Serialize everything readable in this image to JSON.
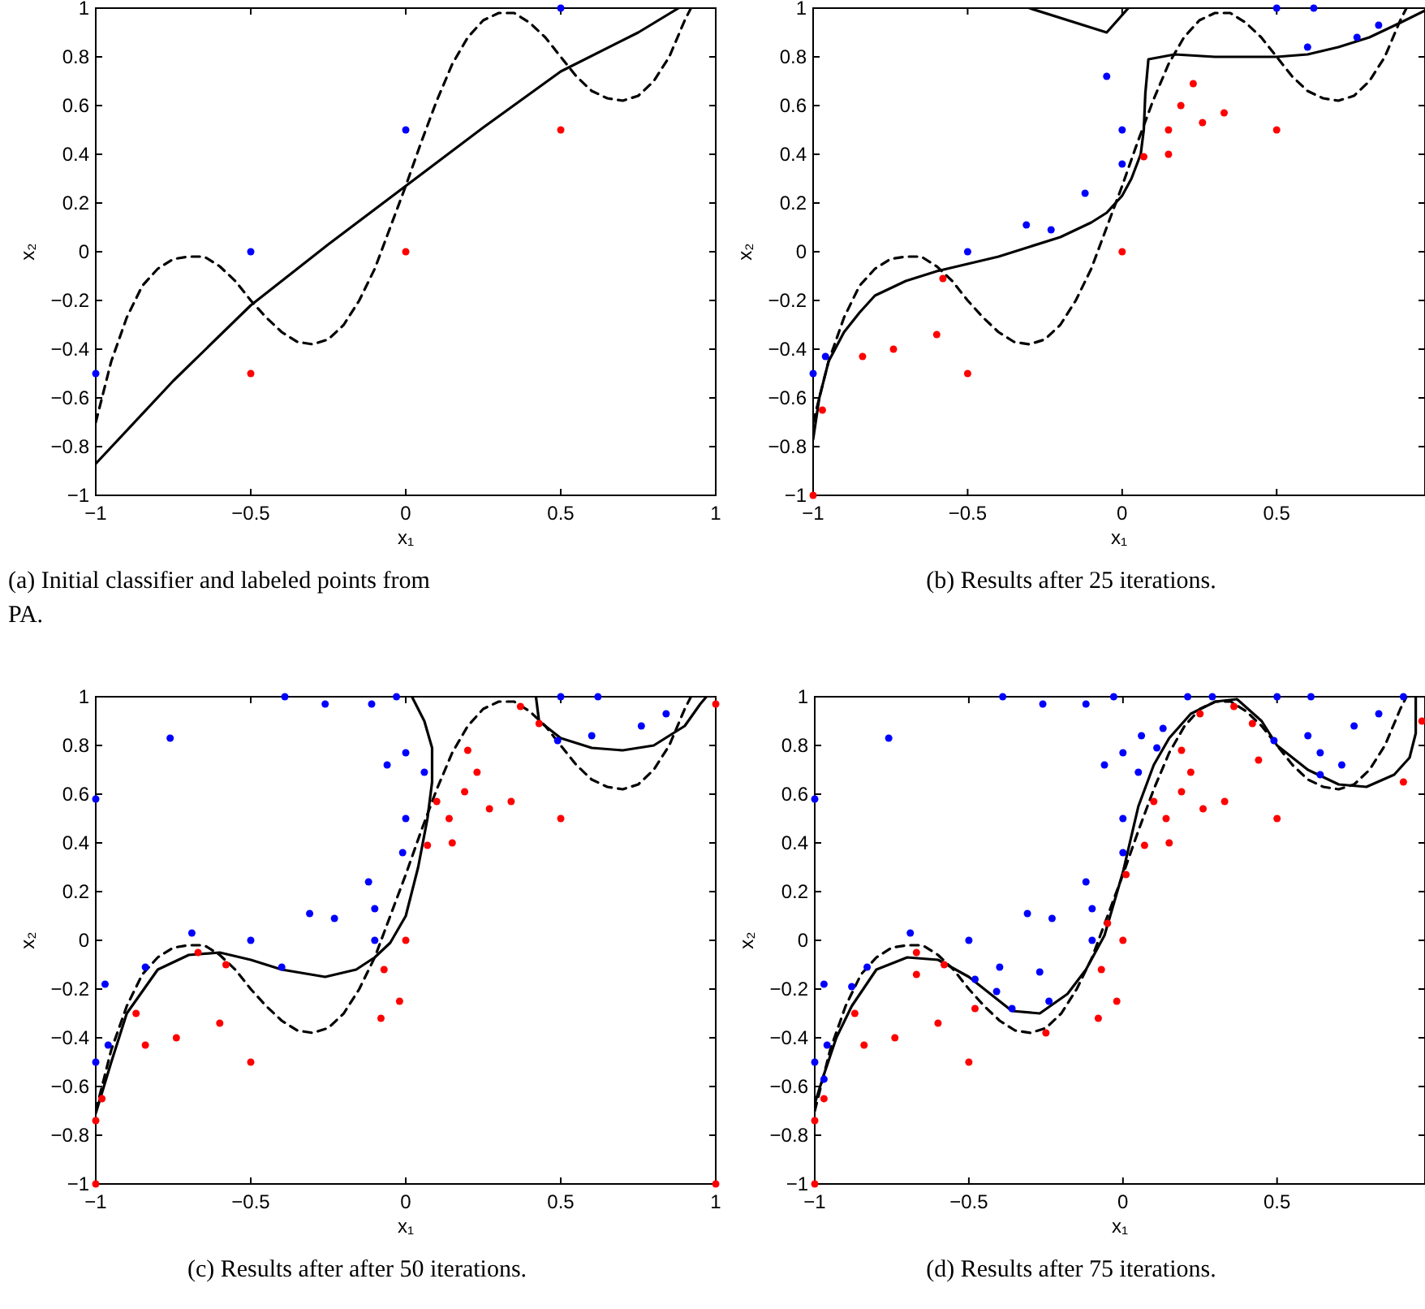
{
  "chart_data": [
    {
      "type": "scatter",
      "title": "(a) Initial classifier and labeled points from PA.",
      "xlabel": "x₁",
      "ylabel": "x₂",
      "xlim": [
        -1,
        1
      ],
      "ylim": [
        -1,
        1
      ],
      "xticks": [
        -1,
        -0.5,
        0,
        0.5,
        1
      ],
      "yticks": [
        -1,
        -0.8,
        -0.6,
        -0.4,
        -0.2,
        0,
        0.2,
        0.4,
        0.6,
        0.8,
        1
      ],
      "series": [
        {
          "type": "line",
          "line_style": "dashed",
          "color": "#000000",
          "x": [
            -1,
            -0.95,
            -0.9,
            -0.85,
            -0.8,
            -0.75,
            -0.7,
            -0.65,
            -0.6,
            -0.55,
            -0.5,
            -0.45,
            -0.4,
            -0.35,
            -0.3,
            -0.25,
            -0.2,
            -0.15,
            -0.1,
            -0.05,
            0,
            0.05,
            0.1,
            0.15,
            0.2,
            0.25,
            0.3,
            0.35,
            0.4,
            0.45,
            0.5,
            0.55,
            0.6,
            0.65,
            0.7,
            0.75,
            0.8,
            0.85,
            0.9,
            0.92
          ],
          "values": [
            -0.7,
            -0.45,
            -0.27,
            -0.14,
            -0.07,
            -0.03,
            -0.02,
            -0.02,
            -0.06,
            -0.12,
            -0.2,
            -0.27,
            -0.33,
            -0.37,
            -0.38,
            -0.36,
            -0.3,
            -0.2,
            -0.07,
            0.1,
            0.27,
            0.45,
            0.62,
            0.77,
            0.88,
            0.95,
            0.98,
            0.98,
            0.94,
            0.88,
            0.8,
            0.72,
            0.66,
            0.63,
            0.62,
            0.64,
            0.7,
            0.8,
            0.95,
            1
          ]
        },
        {
          "type": "line",
          "line_style": "solid",
          "color": "#000000",
          "x": [
            -1,
            -0.75,
            -0.5,
            -0.25,
            0,
            0.25,
            0.5,
            0.75,
            0.88
          ],
          "values": [
            -0.87,
            -0.53,
            -0.22,
            0.03,
            0.27,
            0.51,
            0.74,
            0.9,
            1
          ]
        },
        {
          "type": "scatter",
          "marker": "circle",
          "color": "#0000ff",
          "x": [
            -1,
            -0.5,
            0,
            0.5
          ],
          "values": [
            -0.5,
            0,
            0.5,
            1
          ]
        },
        {
          "type": "scatter",
          "marker": "circle",
          "color": "#ff0000",
          "x": [
            -0.5,
            0,
            0.5
          ],
          "values": [
            -0.5,
            0,
            0.5
          ]
        }
      ]
    },
    {
      "type": "scatter",
      "title": "(b) Results after 25 iterations.",
      "xlabel": "x₁",
      "ylabel": "x₂",
      "xlim": [
        -1,
        0.98
      ],
      "ylim": [
        -1,
        1
      ],
      "xticks": [
        -1,
        -0.5,
        0,
        0.5
      ],
      "yticks": [
        -1,
        -0.8,
        -0.6,
        -0.4,
        -0.2,
        0,
        0.2,
        0.4,
        0.6,
        0.8,
        1
      ],
      "series": [
        {
          "type": "line",
          "line_style": "dashed",
          "color": "#000000",
          "x": [
            -1,
            -0.95,
            -0.9,
            -0.85,
            -0.8,
            -0.75,
            -0.7,
            -0.65,
            -0.6,
            -0.55,
            -0.5,
            -0.45,
            -0.4,
            -0.35,
            -0.3,
            -0.25,
            -0.2,
            -0.15,
            -0.1,
            -0.05,
            0,
            0.05,
            0.1,
            0.15,
            0.2,
            0.25,
            0.3,
            0.35,
            0.4,
            0.45,
            0.5,
            0.55,
            0.6,
            0.65,
            0.7,
            0.75,
            0.8,
            0.85,
            0.9,
            0.92
          ],
          "values": [
            -0.7,
            -0.45,
            -0.27,
            -0.14,
            -0.07,
            -0.03,
            -0.02,
            -0.02,
            -0.06,
            -0.12,
            -0.2,
            -0.27,
            -0.33,
            -0.37,
            -0.38,
            -0.36,
            -0.3,
            -0.2,
            -0.07,
            0.1,
            0.27,
            0.45,
            0.62,
            0.77,
            0.88,
            0.95,
            0.98,
            0.98,
            0.94,
            0.88,
            0.8,
            0.72,
            0.66,
            0.63,
            0.62,
            0.64,
            0.7,
            0.8,
            0.95,
            1
          ]
        },
        {
          "type": "line",
          "line_style": "solid",
          "color": "#000000",
          "x": [
            -0.3,
            -0.05,
            0.02,
            null,
            -1,
            -0.98,
            -0.95,
            -0.9,
            -0.85,
            -0.8,
            -0.7,
            -0.6,
            -0.5,
            -0.4,
            -0.3,
            -0.2,
            -0.1,
            -0.05,
            0,
            0.03,
            0.06,
            0.07,
            0.075,
            0.085,
            0.17,
            0.3,
            0.5,
            0.6,
            0.7,
            0.8,
            0.9,
            0.98
          ],
          "values": [
            1,
            0.9,
            1,
            null,
            -0.77,
            -0.6,
            -0.45,
            -0.33,
            -0.25,
            -0.18,
            -0.12,
            -0.08,
            -0.05,
            -0.02,
            0.02,
            0.06,
            0.12,
            0.16,
            0.23,
            0.3,
            0.4,
            0.5,
            0.65,
            0.79,
            0.81,
            0.8,
            0.8,
            0.81,
            0.84,
            0.88,
            0.94,
            0.99
          ]
        },
        {
          "type": "scatter",
          "marker": "circle",
          "color": "#0000ff",
          "x": [
            -1,
            -0.96,
            -0.5,
            -0.31,
            -0.23,
            -0.12,
            -0.05,
            0,
            0,
            0.5,
            0.62,
            0.6,
            0.76,
            0.83
          ],
          "values": [
            -0.5,
            -0.43,
            0,
            0.11,
            0.09,
            0.24,
            0.72,
            0.5,
            0.36,
            1,
            1,
            0.84,
            0.88,
            0.93
          ]
        },
        {
          "type": "scatter",
          "marker": "circle",
          "color": "#ff0000",
          "x": [
            -1,
            -0.97,
            -0.84,
            -0.74,
            -0.6,
            -0.58,
            -0.5,
            0,
            0.07,
            0.15,
            0.15,
            0.19,
            0.23,
            0.26,
            0.33,
            0.5
          ],
          "values": [
            -1,
            -0.65,
            -0.43,
            -0.4,
            -0.34,
            -0.11,
            -0.5,
            0,
            0.39,
            0.5,
            0.4,
            0.6,
            0.69,
            0.53,
            0.57,
            0.5
          ]
        }
      ]
    },
    {
      "type": "scatter",
      "title": "(c) Results after after 50 iterations.",
      "xlabel": "x₁",
      "ylabel": "x₂",
      "xlim": [
        -1,
        1
      ],
      "ylim": [
        -1,
        1
      ],
      "xticks": [
        -1,
        -0.5,
        0,
        0.5,
        1
      ],
      "yticks": [
        -1,
        -0.8,
        -0.6,
        -0.4,
        -0.2,
        0,
        0.2,
        0.4,
        0.6,
        0.8,
        1
      ],
      "series": [
        {
          "type": "line",
          "line_style": "dashed",
          "color": "#000000",
          "x": [
            -1,
            -0.95,
            -0.9,
            -0.85,
            -0.8,
            -0.75,
            -0.7,
            -0.65,
            -0.6,
            -0.55,
            -0.5,
            -0.45,
            -0.4,
            -0.35,
            -0.3,
            -0.25,
            -0.2,
            -0.15,
            -0.1,
            -0.05,
            0,
            0.05,
            0.1,
            0.15,
            0.2,
            0.25,
            0.3,
            0.35,
            0.4,
            0.45,
            0.5,
            0.55,
            0.6,
            0.65,
            0.7,
            0.75,
            0.8,
            0.85,
            0.9,
            0.92
          ],
          "values": [
            -0.7,
            -0.45,
            -0.27,
            -0.14,
            -0.07,
            -0.03,
            -0.02,
            -0.02,
            -0.06,
            -0.12,
            -0.2,
            -0.27,
            -0.33,
            -0.37,
            -0.38,
            -0.36,
            -0.3,
            -0.2,
            -0.07,
            0.1,
            0.27,
            0.45,
            0.62,
            0.77,
            0.88,
            0.95,
            0.98,
            0.98,
            0.94,
            0.88,
            0.8,
            0.72,
            0.66,
            0.63,
            0.62,
            0.64,
            0.7,
            0.8,
            0.95,
            1
          ]
        },
        {
          "type": "line",
          "line_style": "solid",
          "color": "#000000",
          "x": [
            -1,
            -0.95,
            -0.9,
            -0.8,
            -0.7,
            -0.6,
            -0.5,
            -0.4,
            -0.26,
            -0.16,
            -0.1,
            -0.05,
            0,
            0.04,
            0.07,
            0.085,
            0.085,
            0.06,
            0.02,
            null,
            0.42,
            0.43,
            0.5,
            0.6,
            0.7,
            0.8,
            0.9,
            0.95,
            0.97
          ],
          "values": [
            -0.71,
            -0.5,
            -0.3,
            -0.12,
            -0.06,
            -0.05,
            -0.08,
            -0.12,
            -0.15,
            -0.12,
            -0.07,
            -0.01,
            0.1,
            0.3,
            0.5,
            0.65,
            0.79,
            0.9,
            1,
            null,
            1,
            0.9,
            0.83,
            0.79,
            0.78,
            0.8,
            0.88,
            0.97,
            1
          ]
        },
        {
          "type": "scatter",
          "marker": "circle",
          "color": "#0000ff",
          "x": [
            -1,
            -0.76,
            -0.39,
            -0.26,
            -0.11,
            -0.03,
            -0.06,
            0,
            0.06,
            0,
            -0.01,
            -0.12,
            -0.1,
            -0.1,
            -0.31,
            -0.23,
            -0.5,
            -0.4,
            -0.69,
            -0.84,
            -0.97,
            -0.96,
            -1,
            0.5,
            0.62,
            0.49,
            0.6,
            0.76,
            0.84
          ],
          "values": [
            0.58,
            0.83,
            1,
            0.97,
            0.97,
            1,
            0.72,
            0.77,
            0.69,
            0.5,
            0.36,
            0.24,
            0.13,
            0,
            0.11,
            0.09,
            0,
            -0.11,
            0.03,
            -0.11,
            -0.18,
            -0.43,
            -0.5,
            1,
            1,
            0.82,
            0.84,
            0.88,
            0.93
          ]
        },
        {
          "type": "scatter",
          "marker": "circle",
          "color": "#ff0000",
          "x": [
            -1,
            -1,
            -0.98,
            -0.87,
            -0.84,
            -0.74,
            -0.6,
            -0.67,
            -0.58,
            -0.5,
            -0.08,
            -0.02,
            -0.07,
            0,
            0.07,
            0.1,
            0.14,
            0.15,
            0.19,
            0.2,
            0.23,
            0.27,
            0.34,
            0.37,
            0.43,
            0.5,
            1,
            1
          ],
          "values": [
            -1,
            -0.74,
            -0.65,
            -0.3,
            -0.43,
            -0.4,
            -0.34,
            -0.05,
            -0.1,
            -0.5,
            -0.32,
            -0.25,
            -0.12,
            0,
            0.39,
            0.57,
            0.5,
            0.4,
            0.61,
            0.78,
            0.69,
            0.54,
            0.57,
            0.96,
            0.89,
            0.5,
            0.97,
            -1
          ]
        }
      ]
    },
    {
      "type": "scatter",
      "title": "(d) Results after 75 iterations.",
      "xlabel": "x₁",
      "ylabel": "x₂",
      "xlim": [
        -1,
        0.98
      ],
      "ylim": [
        -1,
        1
      ],
      "xticks": [
        -1,
        -0.5,
        0,
        0.5
      ],
      "yticks": [
        -1,
        -0.8,
        -0.6,
        -0.4,
        -0.2,
        0,
        0.2,
        0.4,
        0.6,
        0.8,
        1
      ],
      "series": [
        {
          "type": "line",
          "line_style": "dashed",
          "color": "#000000",
          "x": [
            -1,
            -0.95,
            -0.9,
            -0.85,
            -0.8,
            -0.75,
            -0.7,
            -0.65,
            -0.6,
            -0.55,
            -0.5,
            -0.45,
            -0.4,
            -0.35,
            -0.3,
            -0.25,
            -0.2,
            -0.15,
            -0.1,
            -0.05,
            0,
            0.05,
            0.1,
            0.15,
            0.2,
            0.25,
            0.3,
            0.35,
            0.4,
            0.45,
            0.5,
            0.55,
            0.6,
            0.65,
            0.7,
            0.75,
            0.8,
            0.85,
            0.9,
            0.92
          ],
          "values": [
            -0.7,
            -0.45,
            -0.27,
            -0.14,
            -0.07,
            -0.03,
            -0.02,
            -0.02,
            -0.06,
            -0.12,
            -0.2,
            -0.27,
            -0.33,
            -0.37,
            -0.38,
            -0.36,
            -0.3,
            -0.2,
            -0.07,
            0.1,
            0.27,
            0.45,
            0.62,
            0.77,
            0.88,
            0.95,
            0.98,
            0.98,
            0.94,
            0.88,
            0.8,
            0.72,
            0.66,
            0.63,
            0.62,
            0.64,
            0.7,
            0.8,
            0.95,
            1
          ]
        },
        {
          "type": "line",
          "line_style": "solid",
          "color": "#000000",
          "x": [
            -1,
            -0.97,
            -0.93,
            -0.88,
            -0.8,
            -0.7,
            -0.6,
            -0.5,
            -0.4,
            -0.36,
            -0.27,
            -0.18,
            -0.12,
            -0.06,
            0,
            0.05,
            0.1,
            0.15,
            0.22,
            0.3,
            0.37,
            0.45,
            0.5,
            0.6,
            0.7,
            0.79,
            0.88,
            0.93,
            0.95,
            0.95
          ],
          "values": [
            -0.67,
            -0.55,
            -0.4,
            -0.27,
            -0.12,
            -0.07,
            -0.08,
            -0.15,
            -0.25,
            -0.29,
            -0.3,
            -0.22,
            -0.12,
            0.02,
            0.28,
            0.55,
            0.72,
            0.83,
            0.93,
            0.98,
            0.99,
            0.9,
            0.8,
            0.7,
            0.64,
            0.63,
            0.68,
            0.75,
            0.85,
            1
          ]
        },
        {
          "type": "scatter",
          "marker": "circle",
          "color": "#0000ff",
          "x": [
            -1,
            -0.76,
            -0.39,
            -0.26,
            -0.12,
            -0.03,
            -0.06,
            0,
            0.05,
            0.06,
            0.11,
            0.13,
            0.21,
            0.29,
            0.5,
            0.61,
            0.91,
            0.49,
            0.6,
            0.64,
            0.64,
            0.71,
            0.75,
            0.83,
            0,
            0,
            -0.12,
            -0.1,
            -0.1,
            -0.31,
            -0.23,
            -0.5,
            -0.4,
            -0.69,
            -0.83,
            -0.97,
            -0.88,
            -0.48,
            -0.41,
            -0.36,
            -0.27,
            -0.24,
            -0.96,
            -0.97,
            -1
          ],
          "values": [
            0.58,
            0.83,
            1,
            0.97,
            0.97,
            1,
            0.72,
            0.77,
            0.69,
            0.84,
            0.79,
            0.87,
            1,
            1,
            1,
            1,
            1,
            0.82,
            0.84,
            0.77,
            0.68,
            0.72,
            0.88,
            0.93,
            0.5,
            0.36,
            0.24,
            0.13,
            0,
            0.11,
            0.09,
            0,
            -0.11,
            0.03,
            -0.11,
            -0.18,
            -0.19,
            -0.16,
            -0.21,
            -0.28,
            -0.13,
            -0.25,
            -0.43,
            -0.57,
            -0.5
          ]
        },
        {
          "type": "scatter",
          "marker": "circle",
          "color": "#ff0000",
          "x": [
            -1,
            -1,
            -0.97,
            -0.87,
            -0.84,
            -0.74,
            -0.6,
            -0.67,
            -0.67,
            -0.58,
            -0.5,
            -0.48,
            -0.25,
            -0.08,
            -0.02,
            -0.07,
            -0.05,
            0,
            0.01,
            0.07,
            0.1,
            0.14,
            0.15,
            0.19,
            0.19,
            0.22,
            0.26,
            0.33,
            0.25,
            0.36,
            0.42,
            0.44,
            0.5,
            0.91,
            0.97
          ],
          "values": [
            -1,
            -0.74,
            -0.65,
            -0.3,
            -0.43,
            -0.4,
            -0.34,
            -0.05,
            -0.14,
            -0.1,
            -0.5,
            -0.28,
            -0.38,
            -0.32,
            -0.25,
            -0.12,
            0.07,
            0,
            0.27,
            0.39,
            0.57,
            0.5,
            0.4,
            0.61,
            0.78,
            0.69,
            0.54,
            0.57,
            0.93,
            0.96,
            0.89,
            0.74,
            0.5,
            0.65,
            0.9
          ]
        }
      ]
    }
  ]
}
